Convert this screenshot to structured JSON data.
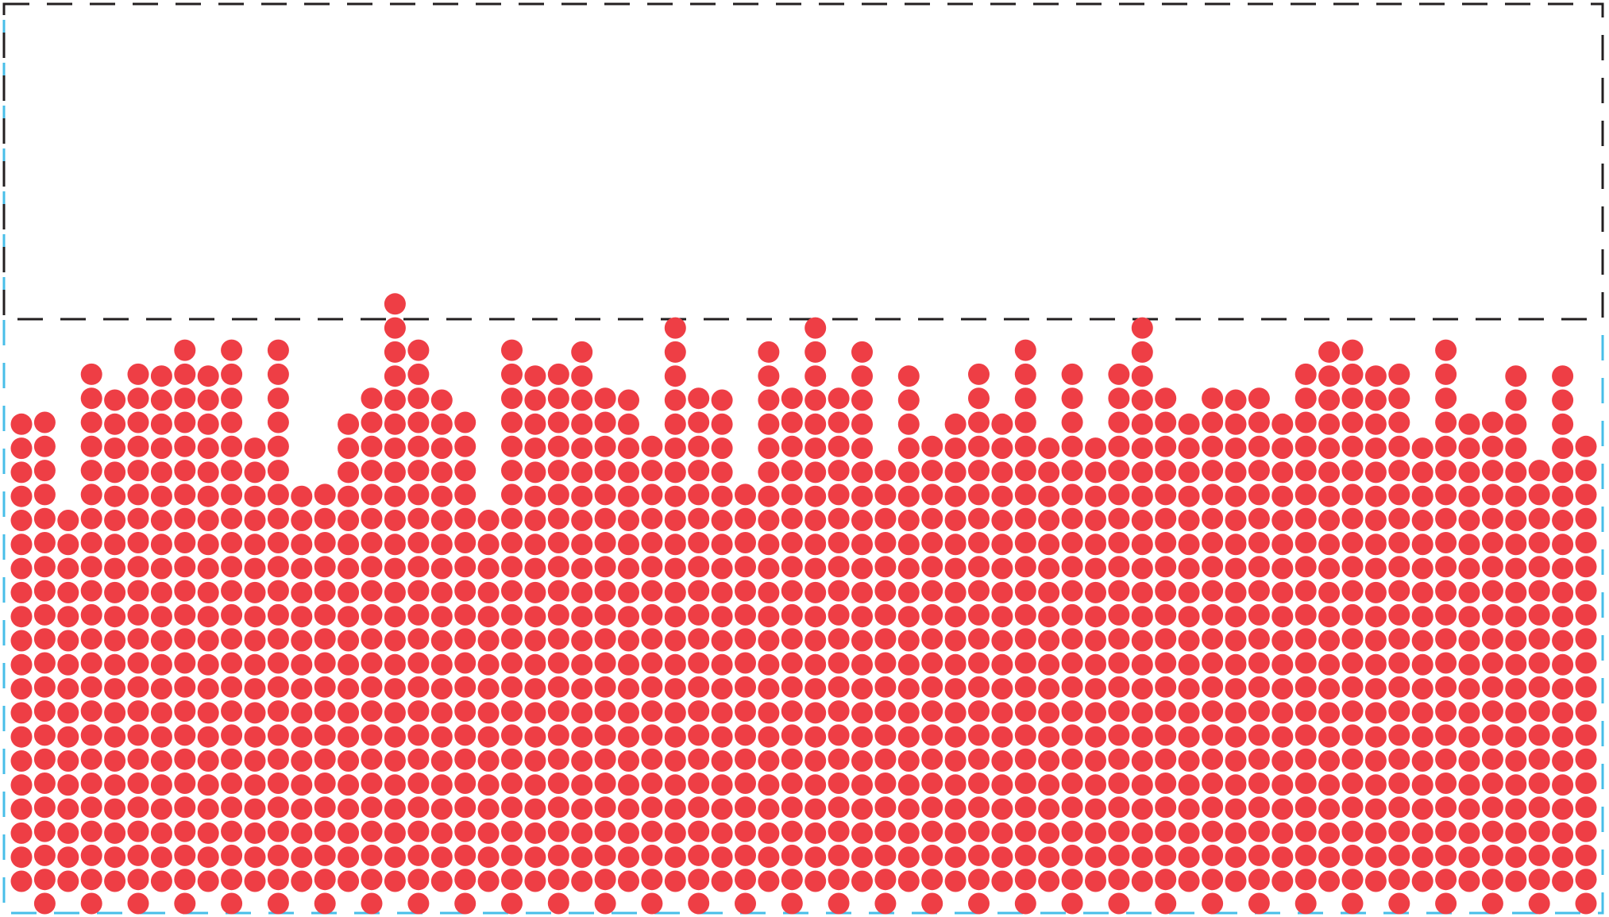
{
  "diagram": {
    "title": "",
    "style": {
      "dot_color": "#EE3E45",
      "upper_region_border": "#231F20",
      "outer_region_border": "#47BEE8",
      "background": "#FFFFFF"
    },
    "dot_columns": [
      20,
      21,
      16,
      23,
      21,
      23,
      22,
      24,
      22,
      24,
      19,
      24,
      17,
      18,
      20,
      22,
      25,
      24,
      21,
      21,
      16,
      24,
      22,
      23,
      23,
      22,
      21,
      20,
      24,
      22,
      21,
      18,
      23,
      22,
      24,
      22,
      23,
      19,
      22,
      20,
      20,
      23,
      20,
      24,
      19,
      23,
      19,
      23,
      24,
      22,
      20,
      22,
      21,
      22,
      20,
      23,
      23,
      24,
      22,
      23,
      19,
      24,
      20,
      21,
      22,
      19,
      22,
      20
    ]
  }
}
